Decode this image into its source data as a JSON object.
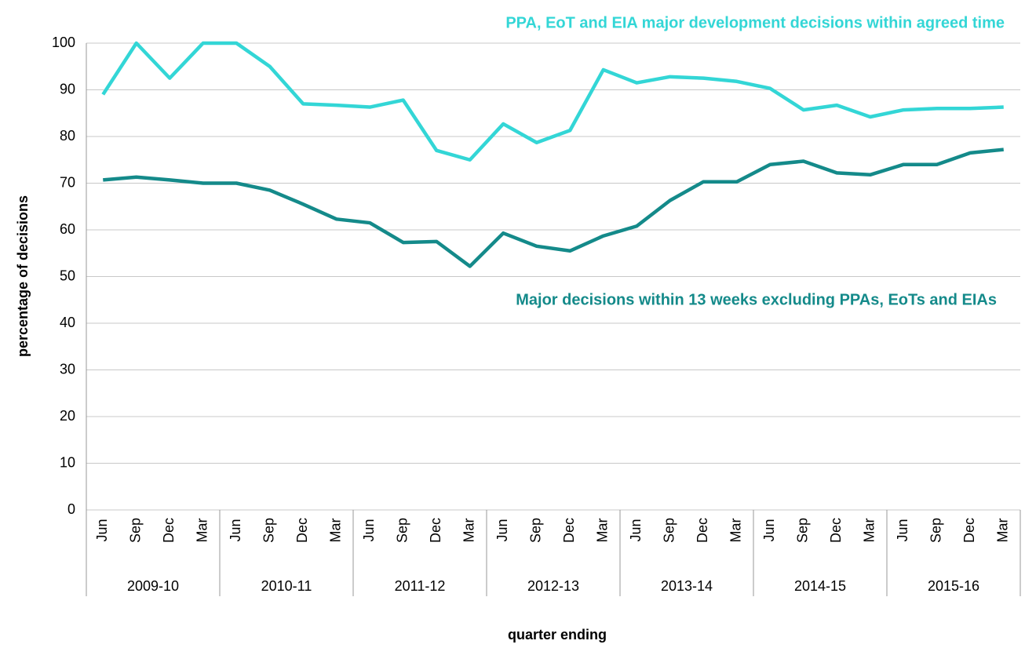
{
  "chart_data": {
    "type": "line",
    "y_label": "percentage of decisions",
    "x_label": "quarter ending",
    "categories": [
      "Jun",
      "Sep",
      "Dec",
      "Mar",
      "Jun",
      "Sep",
      "Dec",
      "Mar",
      "Jun",
      "Sep",
      "Dec",
      "Mar",
      "Jun",
      "Sep",
      "Dec",
      "Mar",
      "Jun",
      "Sep",
      "Dec",
      "Mar",
      "Jun",
      "Sep",
      "Dec",
      "Mar",
      "Jun",
      "Sep",
      "Dec",
      "Mar"
    ],
    "groups": [
      "2009-10",
      "2010-11",
      "2011-12",
      "2012-13",
      "2013-14",
      "2014-15",
      "2015-16"
    ],
    "series": [
      {
        "name": "PPA, EoT and EIA major development decisions within agreed time",
        "color": "#33d6d6",
        "values": [
          89,
          100,
          92.5,
          100,
          100,
          95,
          87,
          86.7,
          86.3,
          87.8,
          77,
          75,
          82.7,
          78.7,
          81.3,
          94.3,
          91.5,
          92.8,
          92.5,
          91.8,
          90.3,
          85.7,
          86.7,
          84.2,
          85.7,
          86,
          86,
          86.3
        ]
      },
      {
        "name": "Major decisions within 13 weeks excluding PPAs, EoTs and EIAs",
        "color": "#148a8a",
        "values": [
          70.7,
          71.3,
          70.7,
          70,
          70,
          68.5,
          65.5,
          62.3,
          61.5,
          57.3,
          57.5,
          52.2,
          59.3,
          56.5,
          55.5,
          58.7,
          60.8,
          66.3,
          70.3,
          70.3,
          74,
          74.7,
          72.2,
          71.8,
          74,
          74,
          76.5,
          77.2
        ]
      }
    ],
    "ylim": [
      0,
      100
    ],
    "yticks": [
      0,
      10,
      20,
      30,
      40,
      50,
      60,
      70,
      80,
      90,
      100
    ],
    "grid": true
  }
}
